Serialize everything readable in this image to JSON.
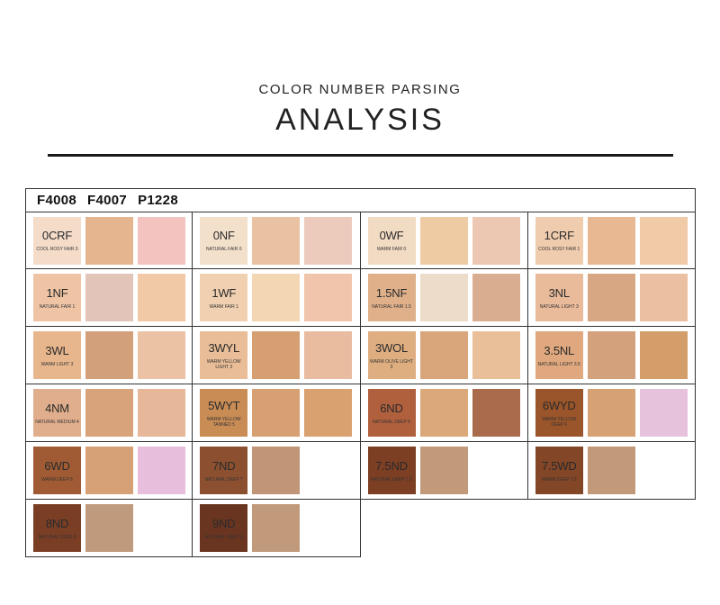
{
  "header": {
    "subtitle": "COLOR NUMBER PARSING",
    "title": "ANALYSIS"
  },
  "product_codes": [
    "F4008",
    "F4007",
    "P1228"
  ],
  "shades": [
    {
      "code": "0CRF",
      "name": "COOL ROSY FAIR 0",
      "label_color": "#f4dcc9",
      "swatches": [
        "#e5b590",
        "#f2c3bf"
      ]
    },
    {
      "code": "0NF",
      "name": "NATURAL FAIR 0",
      "label_color": "#f3e0cb",
      "swatches": [
        "#e9c1a3",
        "#eccbbd"
      ]
    },
    {
      "code": "0WF",
      "name": "WARM FAIR 0",
      "label_color": "#f2dbc3",
      "swatches": [
        "#efcba4",
        "#ecc8b3"
      ]
    },
    {
      "code": "1CRF",
      "name": "COOL ROSY FAIR 1",
      "label_color": "#f0ccae",
      "swatches": [
        "#e8b892",
        "#f1cba8"
      ]
    },
    {
      "code": "1NF",
      "name": "NATURAL FAIR 1",
      "label_color": "#eec4a5",
      "swatches": [
        "#e2c4b9",
        "#f1c9a7"
      ]
    },
    {
      "code": "1WF",
      "name": "WARM FAIR 1",
      "label_color": "#f0d0b0",
      "swatches": [
        "#f3d7b3",
        "#f1c5ab"
      ]
    },
    {
      "code": "1.5NF",
      "name": "NATURAL FAIR 1.5",
      "label_color": "#dfb08a",
      "swatches": [
        "#eedccb",
        "#d9ae90"
      ]
    },
    {
      "code": "3NL",
      "name": "NATURAL LIGHT 3",
      "label_color": "#e9bb9a",
      "swatches": [
        "#d7a783",
        "#ebc0a2"
      ]
    },
    {
      "code": "3WL",
      "name": "WARM LIGHT 3",
      "label_color": "#e8b68d",
      "swatches": [
        "#d3a07c",
        "#ecc2a5"
      ]
    },
    {
      "code": "3WYL",
      "name": "WARM YELLOW LIGHT 3",
      "label_color": "#e9bd97",
      "swatches": [
        "#d59f72",
        "#e9bc9f"
      ]
    },
    {
      "code": "3WOL",
      "name": "WARM OLIVE LIGHT 3",
      "label_color": "#dfae80",
      "swatches": [
        "#d9a57b",
        "#e9bf9a"
      ]
    },
    {
      "code": "3.5NL",
      "name": "NATURAL LIGHT 3.5",
      "label_color": "#dfa87e",
      "swatches": [
        "#d4a17d",
        "#d39e69"
      ]
    },
    {
      "code": "4NM",
      "name": "NATURAL MEDIUM 4",
      "label_color": "#e0ae8c",
      "swatches": [
        "#d8a37a",
        "#e6b799"
      ]
    },
    {
      "code": "5WYT",
      "name": "WARM YELLOW TANNED 5",
      "label_color": "#c98c55",
      "swatches": [
        "#d7a072",
        "#d9a070"
      ]
    },
    {
      "code": "6ND",
      "name": "NATURAL DEEP 6",
      "label_color": "#b1603e",
      "swatches": [
        "#dba87a",
        "#a96b4b"
      ]
    },
    {
      "code": "6WYD",
      "name": "WARM YELLOW DEEP 6",
      "label_color": "#9a552b",
      "swatches": [
        "#d6a173",
        "#e6c2dd"
      ]
    },
    {
      "code": "6WD",
      "name": "WARM DEEP 6",
      "label_color": "#a05b34",
      "swatches": [
        "#d7a177",
        "#e7bedc"
      ]
    },
    {
      "code": "7ND",
      "name": "NATURAL DEEP 7",
      "label_color": "#8c5030",
      "swatches": [
        "#c09578"
      ]
    },
    {
      "code": "7.5ND",
      "name": "NATURAL DEEP 7.5",
      "label_color": "#7c3f24",
      "swatches": [
        "#c29a7a"
      ]
    },
    {
      "code": "7.5WD",
      "name": "WARM DEEP 7.5",
      "label_color": "#834626",
      "swatches": [
        "#c29a7a"
      ]
    },
    {
      "code": "8ND",
      "name": "NATURAL DEEP 8",
      "label_color": "#7a3e25",
      "swatches": [
        "#c09a7c"
      ]
    },
    {
      "code": "9ND",
      "name": "NATURAL DEEP 9",
      "label_color": "#6a3520",
      "swatches": [
        "#c19a7b"
      ]
    }
  ]
}
